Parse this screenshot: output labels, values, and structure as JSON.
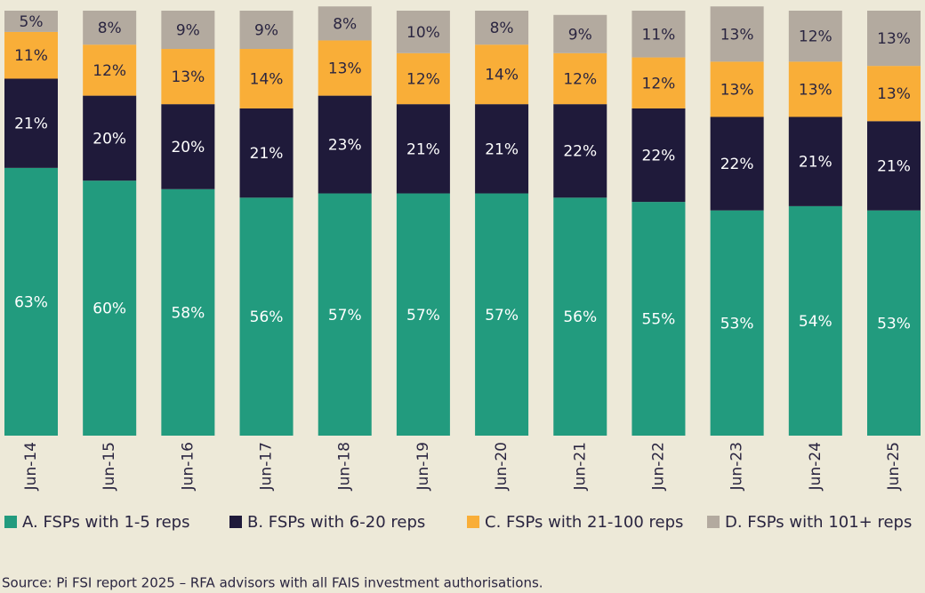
{
  "chart_data": {
    "type": "stacked_bar",
    "categories": [
      "Jun-14",
      "Jun-15",
      "Jun-16",
      "Jun-17",
      "Jun-18",
      "Jun-19",
      "Jun-20",
      "Jun-21",
      "Jun-22",
      "Jun-23",
      "Jun-24",
      "Jun-25"
    ],
    "series": [
      {
        "name": "A. FSPs with 1-5 reps",
        "color": "#229b7e",
        "label_color": "#ffffff",
        "values": [
          63,
          60,
          58,
          56,
          57,
          57,
          57,
          56,
          55,
          53,
          54,
          53
        ],
        "value_labels": [
          "63%",
          "60%",
          "58%",
          "56%",
          "57%",
          "57%",
          "57%",
          "56%",
          "55%",
          "53%",
          "54%",
          "53%"
        ]
      },
      {
        "name": "B. FSPs with 6-20 reps",
        "color": "#1f1a3a",
        "label_color": "#ffffff",
        "values": [
          21,
          20,
          20,
          21,
          23,
          21,
          21,
          22,
          22,
          22,
          21,
          21
        ],
        "value_labels": [
          "21%",
          "20%",
          "20%",
          "21%",
          "23%",
          "21%",
          "21%",
          "22%",
          "22%",
          "22%",
          "21%",
          "21%"
        ]
      },
      {
        "name": "C. FSPs with 21-100 reps",
        "color": "#f9ae38",
        "label_color": "#2a2540",
        "values": [
          11,
          12,
          13,
          14,
          13,
          12,
          14,
          12,
          12,
          13,
          13,
          13
        ],
        "value_labels": [
          "11%",
          "12%",
          "13%",
          "14%",
          "13%",
          "12%",
          "14%",
          "12%",
          "12%",
          "13%",
          "13%",
          "13%"
        ]
      },
      {
        "name": "D. FSPs with 101+ reps",
        "color": "#b3aa9f",
        "label_color": "#2a2540",
        "values": [
          5,
          8,
          9,
          9,
          8,
          10,
          8,
          9,
          11,
          13,
          12,
          13
        ],
        "value_labels": [
          "5%",
          "8%",
          "9%",
          "9%",
          "8%",
          "10%",
          "8%",
          "9%",
          "11%",
          "13%",
          "12%",
          "13%"
        ]
      }
    ],
    "ylim": [
      0,
      100
    ],
    "source": "Source: Pi FSI report 2025 – RFA advisors with all FAIS investment authorisations."
  }
}
